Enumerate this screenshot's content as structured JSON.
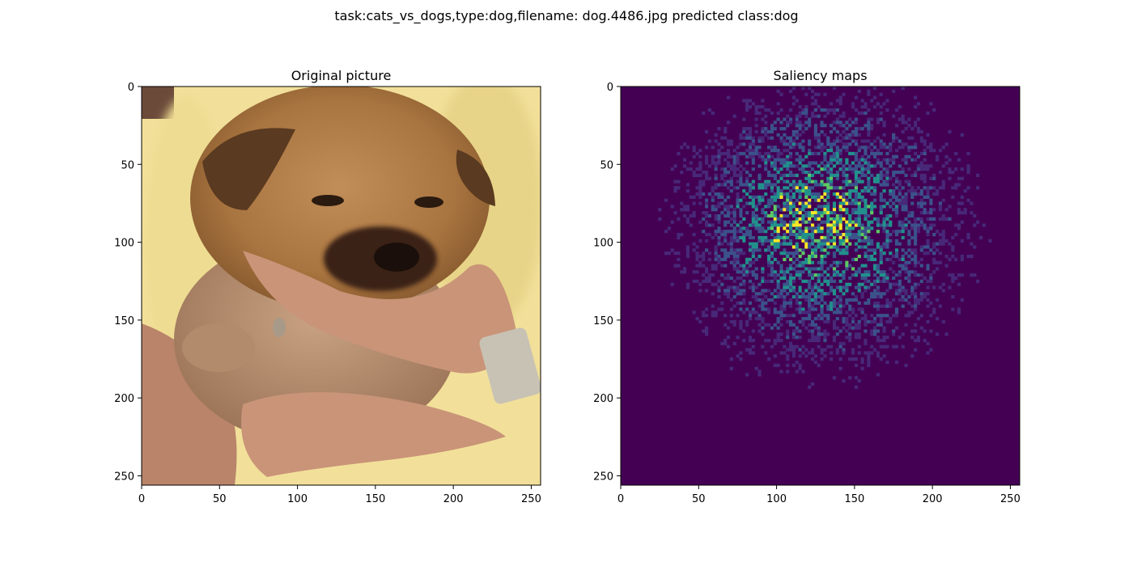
{
  "figure": {
    "suptitle": "task:cats_vs_dogs,type:dog,filename: dog.4486.jpg predicted class:dog"
  },
  "chart_data": [
    {
      "type": "image",
      "title": "Original picture",
      "content": "photo of a brown puppy held in two human hands against a pale yellow shirt",
      "xlim": [
        0,
        256
      ],
      "ylim": [
        256,
        0
      ],
      "xticks": [
        0,
        50,
        100,
        150,
        200,
        250
      ],
      "yticks": [
        0,
        50,
        100,
        150,
        200,
        250
      ],
      "colors": {
        "shirt": "#f2e09a",
        "fur": "#b07c4a",
        "fur_dark": "#5a3a20",
        "skin": "#c99478",
        "wall": "#6b4a3a"
      }
    },
    {
      "type": "heatmap",
      "title": "Saliency maps",
      "colormap": "viridis",
      "xlim": [
        0,
        256
      ],
      "ylim": [
        256,
        0
      ],
      "xticks": [
        0,
        50,
        100,
        150,
        200,
        250
      ],
      "yticks": [
        0,
        50,
        100,
        150,
        200,
        250
      ],
      "hotspot": {
        "x_range": [
          60,
          200
        ],
        "y_range": [
          20,
          160
        ],
        "peak": [
          115,
          82
        ]
      },
      "colors": {
        "background": "#440154",
        "low": "#3b528b",
        "mid": "#21918c",
        "high": "#5ec962",
        "peak": "#fde725"
      }
    }
  ]
}
